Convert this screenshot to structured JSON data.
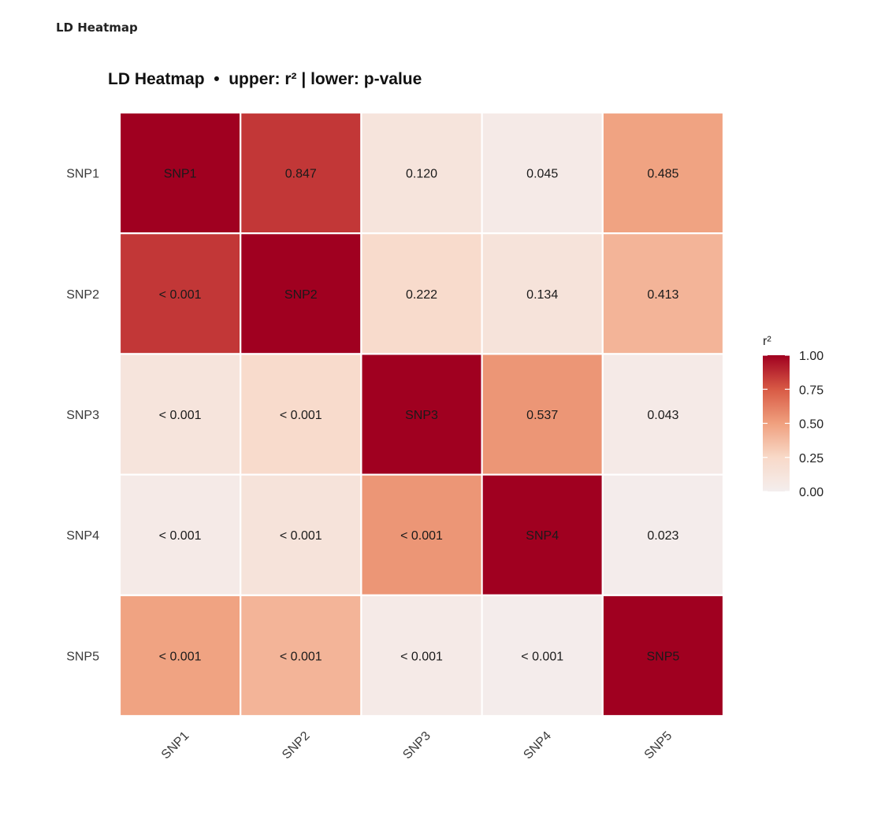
{
  "window": {
    "title": "LD Heatmap"
  },
  "chart_data": {
    "type": "heatmap",
    "title": "LD Heatmap  •  upper: r² | lower: p-value",
    "rows": [
      "SNP1",
      "SNP2",
      "SNP3",
      "SNP4",
      "SNP5"
    ],
    "cols": [
      "SNP1",
      "SNP2",
      "SNP3",
      "SNP4",
      "SNP5"
    ],
    "r2": [
      [
        1.0,
        0.847,
        0.12,
        0.045,
        0.485
      ],
      [
        0.847,
        1.0,
        0.222,
        0.134,
        0.413
      ],
      [
        0.12,
        0.222,
        1.0,
        0.537,
        0.043
      ],
      [
        0.045,
        0.134,
        0.537,
        1.0,
        0.023
      ],
      [
        0.485,
        0.413,
        0.043,
        0.023,
        1.0
      ]
    ],
    "labels": [
      [
        "SNP1",
        "0.847",
        "0.120",
        "0.045",
        "0.485"
      ],
      [
        "< 0.001",
        "SNP2",
        "0.222",
        "0.134",
        "0.413"
      ],
      [
        "< 0.001",
        "< 0.001",
        "SNP3",
        "0.537",
        "0.043"
      ],
      [
        "< 0.001",
        "< 0.001",
        "< 0.001",
        "SNP4",
        "0.023"
      ],
      [
        "< 0.001",
        "< 0.001",
        "< 0.001",
        "< 0.001",
        "SNP5"
      ]
    ],
    "legend": {
      "title": "r²",
      "ticks": [
        {
          "value": 1.0,
          "label": "1.00"
        },
        {
          "value": 0.75,
          "label": "0.75"
        },
        {
          "value": 0.5,
          "label": "0.50"
        },
        {
          "value": 0.25,
          "label": "0.25"
        },
        {
          "value": 0.0,
          "label": "0.00"
        }
      ],
      "placement": "right"
    },
    "color_range": [
      0,
      1
    ],
    "color_stops": [
      "#f4eeee",
      "#f8d9c8",
      "#f0a07e",
      "#d85a45",
      "#a00020"
    ]
  }
}
